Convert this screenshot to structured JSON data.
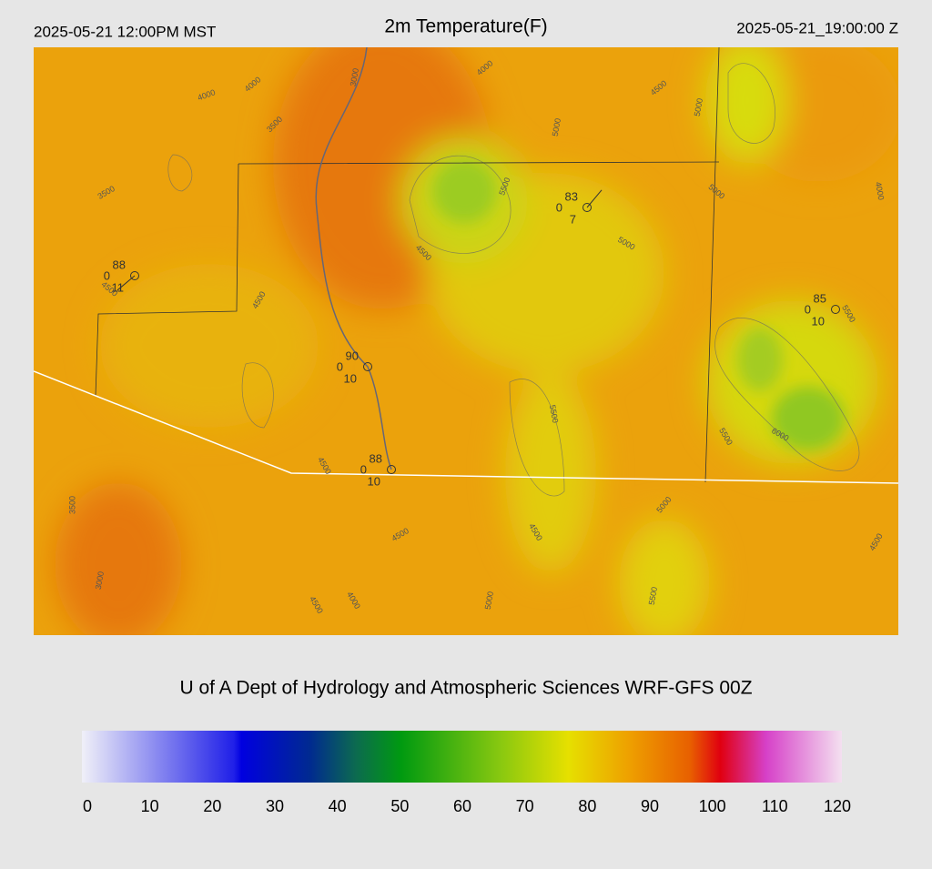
{
  "header": {
    "left": "2025-05-21 12:00PM MST",
    "title": "2m Temperature(F)",
    "right": "2025-05-21_19:00:00 Z"
  },
  "stations": [
    {
      "temp": "88",
      "dew": "0",
      "wind": "11"
    },
    {
      "temp": "83",
      "dew": "0",
      "wind": "7"
    },
    {
      "temp": "85",
      "dew": "0",
      "wind": "10"
    },
    {
      "temp": "90",
      "dew": "0",
      "wind": "10"
    },
    {
      "temp": "88",
      "dew": "0",
      "wind": "10"
    }
  ],
  "contour_labels": [
    "4000",
    "4000",
    "3500",
    "3500",
    "3000",
    "4000",
    "4500",
    "5000",
    "5000",
    "5500",
    "4500",
    "5000",
    "5000",
    "4000",
    "4500",
    "4500",
    "5500",
    "5500",
    "5500",
    "6000",
    "4500",
    "3500",
    "4500",
    "4500",
    "5000",
    "4500",
    "3000",
    "4000",
    "4500",
    "5000",
    "5500"
  ],
  "footer": {
    "credit": "U of A Dept of Hydrology and Atmospheric Sciences WRF-GFS 00Z"
  },
  "colorbar": {
    "range": [
      0,
      120
    ],
    "ticks": [
      0,
      10,
      20,
      30,
      40,
      50,
      60,
      70,
      80,
      90,
      100,
      110,
      120
    ]
  }
}
